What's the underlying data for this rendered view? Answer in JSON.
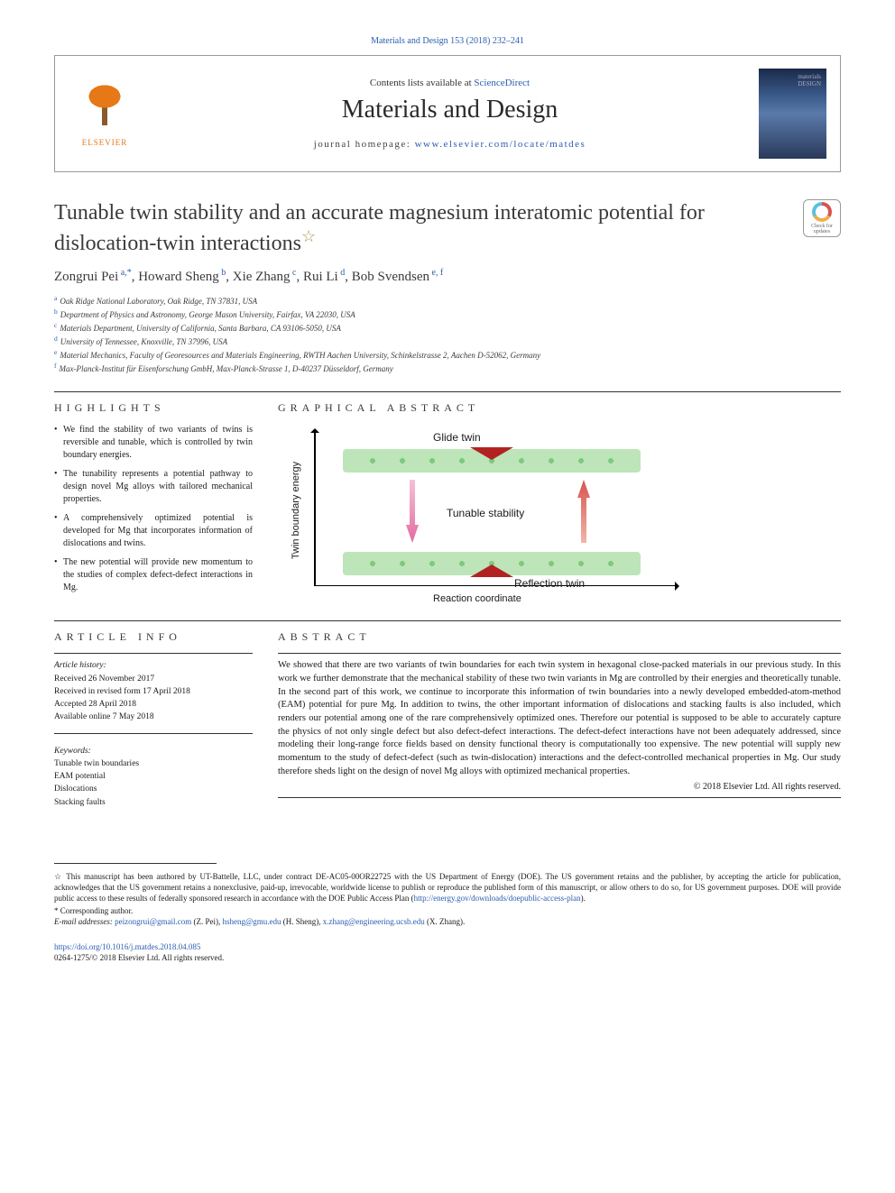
{
  "top_ref": "Materials and Design 153 (2018) 232–241",
  "header": {
    "contents_prefix": "Contents lists available at ",
    "contents_link": "ScienceDirect",
    "journal_title": "Materials and Design",
    "homepage_prefix": "journal homepage: ",
    "homepage_url": "www.elsevier.com/locate/matdes",
    "publisher_logo_text": "ELSEVIER",
    "cover_text": "materials DESIGN"
  },
  "check_badge": {
    "line1": "Check for",
    "line2": "updates"
  },
  "article": {
    "title": "Tunable twin stability and an accurate magnesium interatomic potential for dislocation-twin interactions",
    "title_note_symbol": "☆",
    "authors_html": "Zongrui Pei",
    "authors": [
      {
        "name": "Zongrui Pei",
        "sup": "a,*"
      },
      {
        "name": "Howard Sheng",
        "sup": "b"
      },
      {
        "name": "Xie Zhang",
        "sup": "c"
      },
      {
        "name": "Rui Li",
        "sup": "d"
      },
      {
        "name": "Bob Svendsen",
        "sup": "e, f"
      }
    ],
    "affiliations": [
      {
        "sup": "a",
        "text": "Oak Ridge National Laboratory, Oak Ridge, TN 37831, USA"
      },
      {
        "sup": "b",
        "text": "Department of Physics and Astronomy, George Mason University, Fairfax, VA 22030, USA"
      },
      {
        "sup": "c",
        "text": "Materials Department, University of California, Santa Barbara, CA 93106-5050, USA"
      },
      {
        "sup": "d",
        "text": "University of Tennessee, Knoxville, TN 37996, USA"
      },
      {
        "sup": "e",
        "text": "Material Mechanics, Faculty of Georesources and Materials Engineering, RWTH Aachen University, Schinkelstrasse 2, Aachen D-52062, Germany"
      },
      {
        "sup": "f",
        "text": "Max-Planck-Institut für Eisenforschung GmbH, Max-Planck-Strasse 1, D-40237 Düsseldorf, Germany"
      }
    ]
  },
  "highlights": {
    "heading": "HIGHLIGHTS",
    "items": [
      "We find the stability of two variants of twins is reversible and tunable, which is controlled by twin boundary energies.",
      "The tunability represents a potential pathway to design novel Mg alloys with tailored mechanical properties.",
      "A comprehensively optimized potential is developed for Mg that incorporates information of dislocations and twins.",
      "The new potential will provide new momentum to the studies of complex defect-defect interactions in Mg."
    ]
  },
  "graphical_abstract": {
    "heading": "GRAPHICAL ABSTRACT",
    "y_axis_label": "Twin boundary energy",
    "x_axis_label": "Reaction coordinate",
    "top_band_label": "Glide twin",
    "bottom_band_label": "Reflection twin",
    "center_label": "Tunable stability",
    "colors": {
      "band_fill": "#bde5b9",
      "atom_dot": "#7fc97f",
      "vee": "#b22222",
      "arrow_down": "#e46aa0",
      "arrow_up": "#d9534f",
      "axis": "#000000"
    }
  },
  "article_info": {
    "heading": "ARTICLE INFO",
    "history_head": "Article history:",
    "history": [
      "Received 26 November 2017",
      "Received in revised form 17 April 2018",
      "Accepted 28 April 2018",
      "Available online 7 May 2018"
    ],
    "keywords_head": "Keywords:",
    "keywords": [
      "Tunable twin boundaries",
      "EAM potential",
      "Dislocations",
      "Stacking faults"
    ]
  },
  "abstract": {
    "heading": "ABSTRACT",
    "text": "We showed that there are two variants of twin boundaries for each twin system in hexagonal close-packed materials in our previous study. In this work we further demonstrate that the mechanical stability of these two twin variants in Mg are controlled by their energies and theoretically tunable. In the second part of this work, we continue to incorporate this information of twin boundaries into a newly developed embedded-atom-method (EAM) potential for pure Mg. In addition to twins, the other important information of dislocations and stacking faults is also included, which renders our potential among one of the rare comprehensively optimized ones. Therefore our potential is supposed to be able to accurately capture the physics of not only single defect but also defect-defect interactions. The defect-defect interactions have not been adequately addressed, since modeling their long-range force fields based on density functional theory is computationally too expensive. The new potential will supply new momentum to the study of defect-defect (such as twin-dislocation) interactions and the defect-controlled mechanical properties in Mg. Our study therefore sheds light on the design of novel Mg alloys with optimized mechanical properties.",
    "copyright": "© 2018 Elsevier Ltd. All rights reserved."
  },
  "footnotes": {
    "star_note": "☆  This manuscript has been authored by UT-Battelle, LLC, under contract DE-AC05-00OR22725 with the US Department of Energy (DOE). The US government retains and the publisher, by accepting the article for publication, acknowledges that the US government retains a nonexclusive, paid-up, irrevocable, worldwide license to publish or reproduce the published form of this manuscript, or allow others to do so, for US government purposes. DOE will provide public access to these results of federally sponsored research in accordance with the DOE Public Access Plan (",
    "star_note_link": "http://energy.gov/downloads/doepublic-access-plan",
    "star_note_suffix": ").",
    "corr": "*  Corresponding author.",
    "emails_label": "E-mail addresses: ",
    "emails": [
      {
        "addr": "peizongrui@gmail.com",
        "who": " (Z. Pei), "
      },
      {
        "addr": "hsheng@gmu.edu",
        "who": " (H. Sheng), "
      },
      {
        "addr": "x.zhang@engineering.ucsb.edu",
        "who": " (X. Zhang)."
      }
    ]
  },
  "doi": {
    "url": "https://doi.org/10.1016/j.matdes.2018.04.085",
    "issn_line": "0264-1275/© 2018 Elsevier Ltd. All rights reserved."
  }
}
